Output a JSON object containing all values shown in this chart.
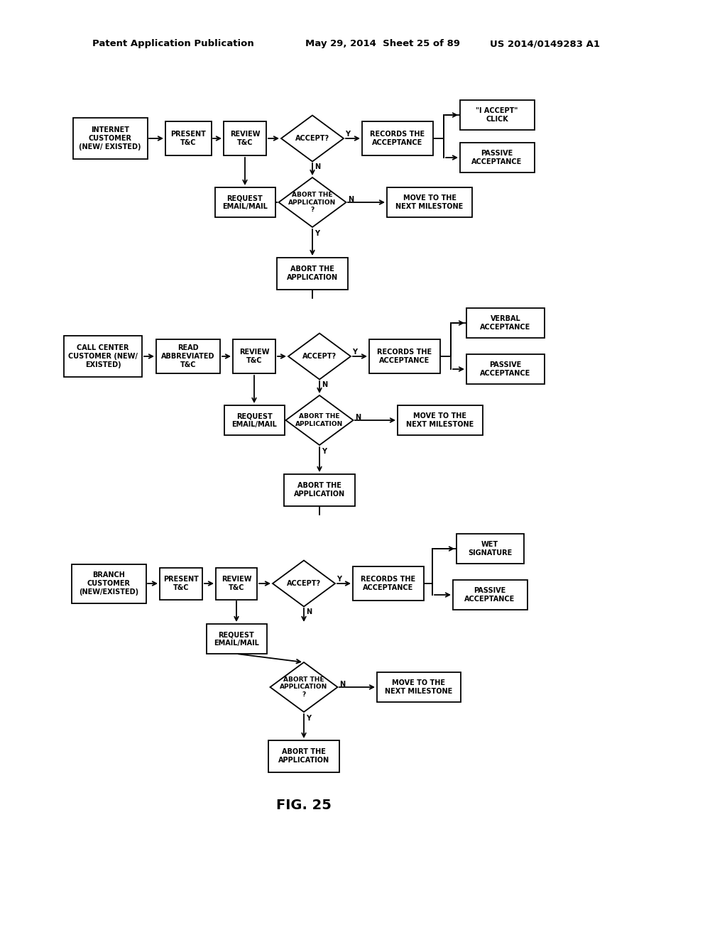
{
  "title_left": "Patent Application Publication",
  "title_mid": "May 29, 2014  Sheet 25 of 89",
  "title_right": "US 2014/0149283 A1",
  "fig_label": "FIG. 25",
  "background_color": "#ffffff",
  "line_color": "#000000",
  "text_color": "#000000",
  "font_size": 7.0
}
